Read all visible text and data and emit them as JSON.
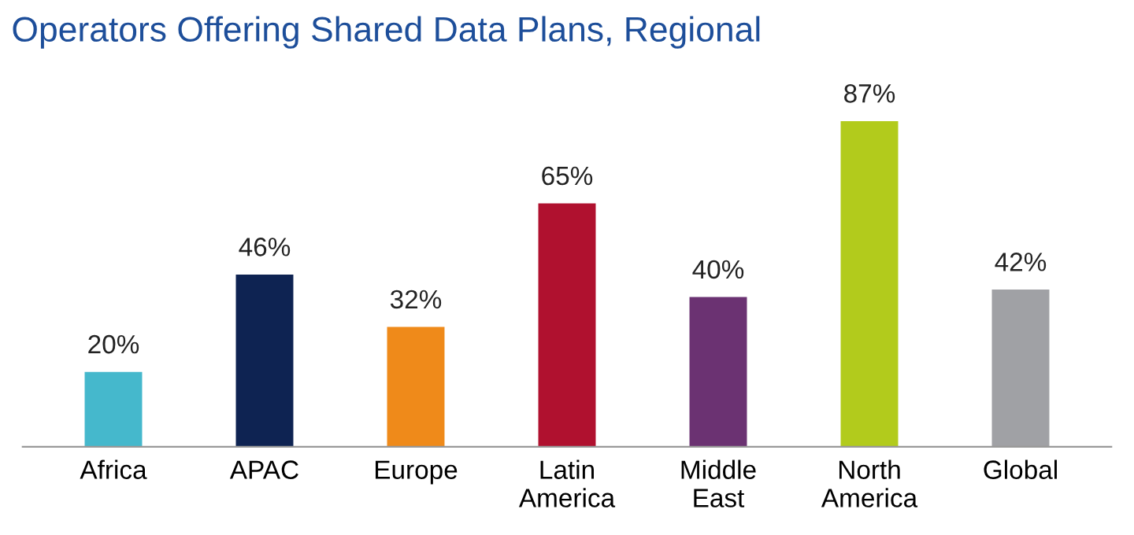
{
  "chart_data": {
    "type": "bar",
    "title": "Operators Offering Shared Data Plans, Regional",
    "categories": [
      "Africa",
      "APAC",
      "Europe",
      "Latin\nAmerica",
      "Middle\nEast",
      "North\nAmerica",
      "Global"
    ],
    "values": [
      20,
      46,
      32,
      65,
      40,
      87,
      42
    ],
    "colors": [
      "#45b8cc",
      "#0e2352",
      "#ef8a1a",
      "#b0112f",
      "#6b3272",
      "#b2cb1c",
      "#a0a1a5"
    ],
    "value_labels": [
      "20%",
      "46%",
      "32%",
      "65%",
      "40%",
      "87%",
      "42%"
    ],
    "tick_labels": "x",
    "grid": false,
    "legend": false
  }
}
